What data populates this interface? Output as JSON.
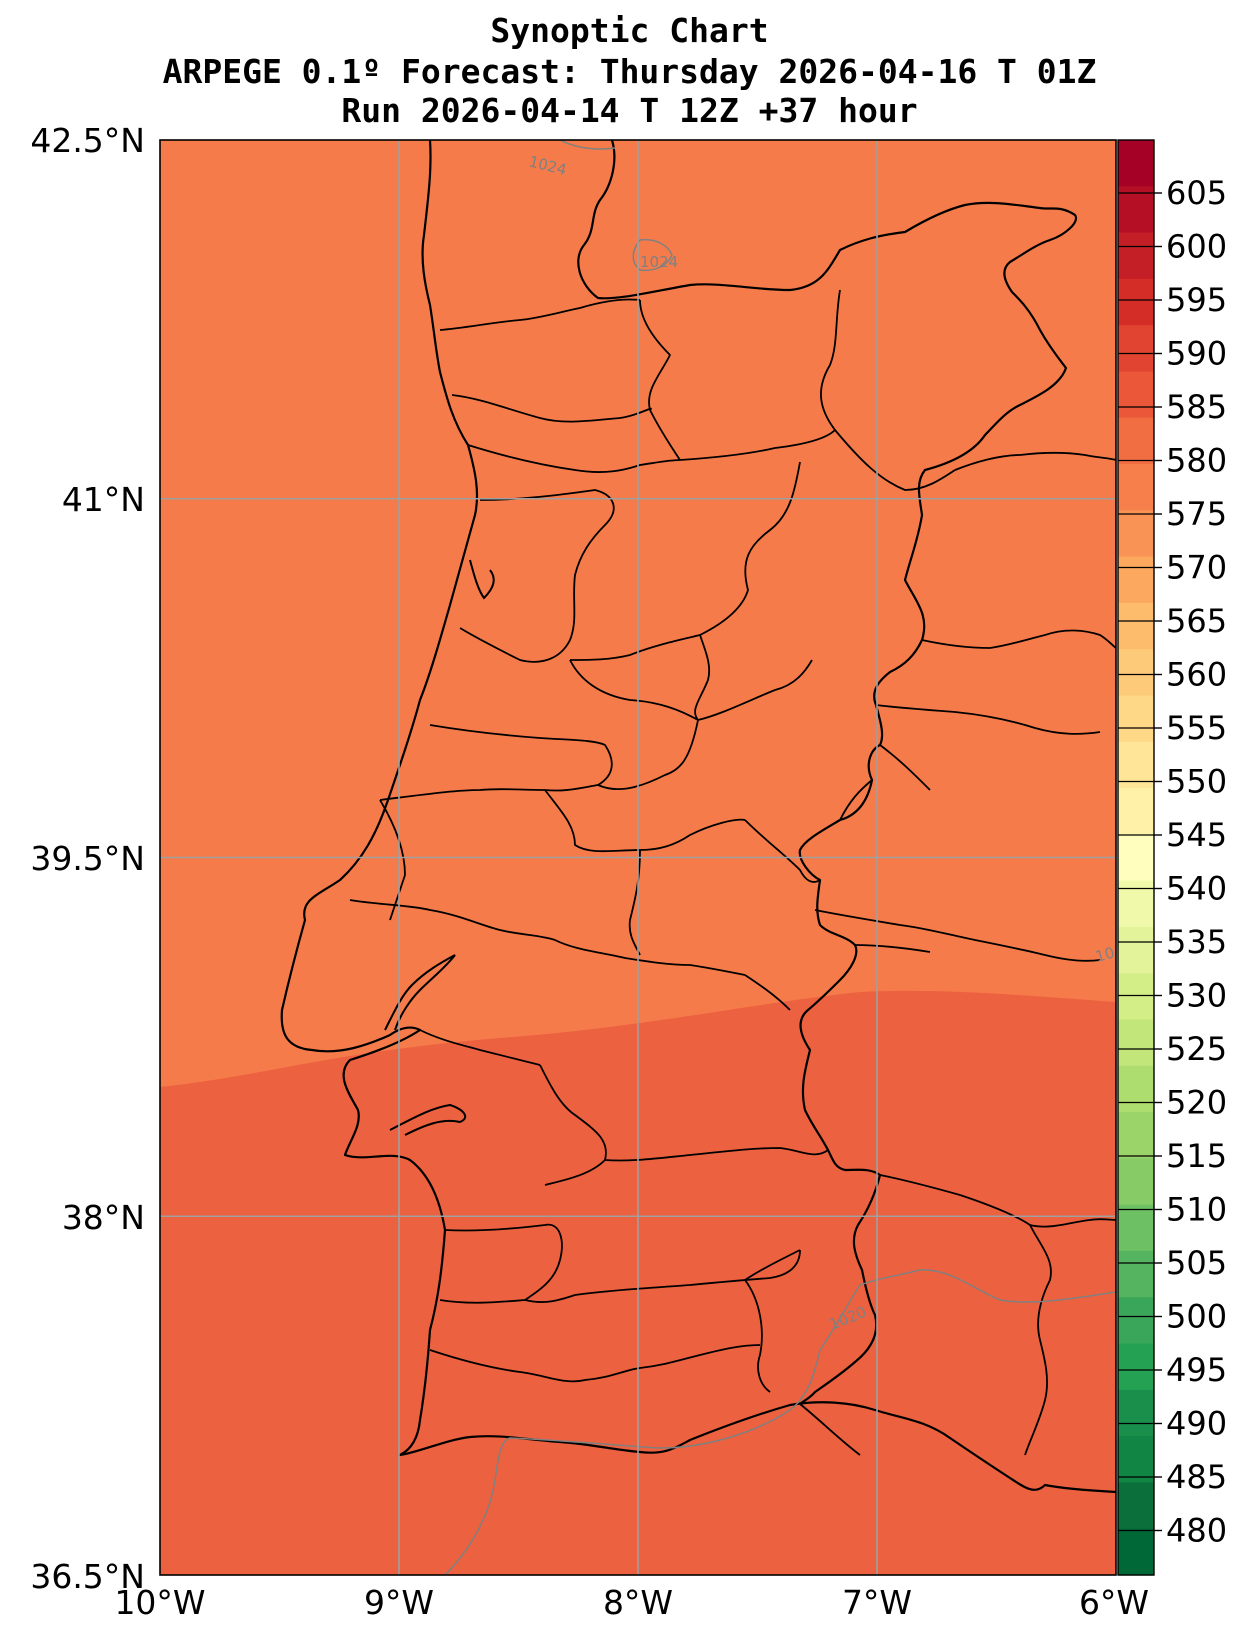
{
  "title": {
    "line1": "Synoptic Chart",
    "line2": "ARPEGE 0.1º Forecast: Thursday 2026-04-16 T 01Z",
    "line3": "Run 2026-04-14 T 12Z +37 hour"
  },
  "axes": {
    "lat_ticks": [
      "42.5°N",
      "41°N",
      "39.5°N",
      "38°N",
      "36.5°N"
    ],
    "lon_ticks": [
      "10°W",
      "9°W",
      "8°W",
      "7°W",
      "6°W"
    ]
  },
  "colorbar": {
    "labels": [
      "605",
      "600",
      "595",
      "590",
      "585",
      "580",
      "575",
      "570",
      "565",
      "560",
      "555",
      "550",
      "545",
      "540",
      "535",
      "530",
      "525",
      "520",
      "515",
      "510",
      "505",
      "500",
      "495",
      "490",
      "485",
      "480"
    ],
    "colors": [
      "#a50026",
      "#b50f26",
      "#c41f26",
      "#d42d27",
      "#e14430",
      "#ea5739",
      "#f16e43",
      "#f67f4b",
      "#f99355",
      "#fca85e",
      "#fdbb6c",
      "#fdca79",
      "#fed887",
      "#fee597",
      "#fff1a8",
      "#fffebe",
      "#f0f9aa",
      "#e3f399",
      "#d3ed87",
      "#c2e67a",
      "#addc6f",
      "#9bd469",
      "#86cb66",
      "#6dc064",
      "#54b45f",
      "#3aa659",
      "#24a153",
      "#1a8e4b",
      "#118644",
      "#0a6f3b",
      "#006837"
    ]
  },
  "isobars": [
    "1024",
    "1024",
    "1020",
    "10"
  ],
  "field_colors": {
    "north": "#f67b4a",
    "south": "#ec6140"
  },
  "chart_data": {
    "type": "heatmap",
    "title": "Synoptic Chart",
    "lon_range": [
      -10,
      -6
    ],
    "lat_range": [
      36.5,
      42.5
    ],
    "levels": [
      480,
      485,
      490,
      495,
      500,
      505,
      510,
      515,
      520,
      525,
      530,
      535,
      540,
      545,
      550,
      555,
      560,
      565,
      570,
      575,
      580,
      585,
      590,
      595,
      600,
      605
    ],
    "regions": [
      {
        "area": "north of ~39°N",
        "band": [
          575,
          580
        ]
      },
      {
        "area": "south of ~39°N",
        "band": [
          580,
          585
        ]
      }
    ],
    "isobar_levels": [
      1020,
      1024
    ],
    "grid": true
  }
}
